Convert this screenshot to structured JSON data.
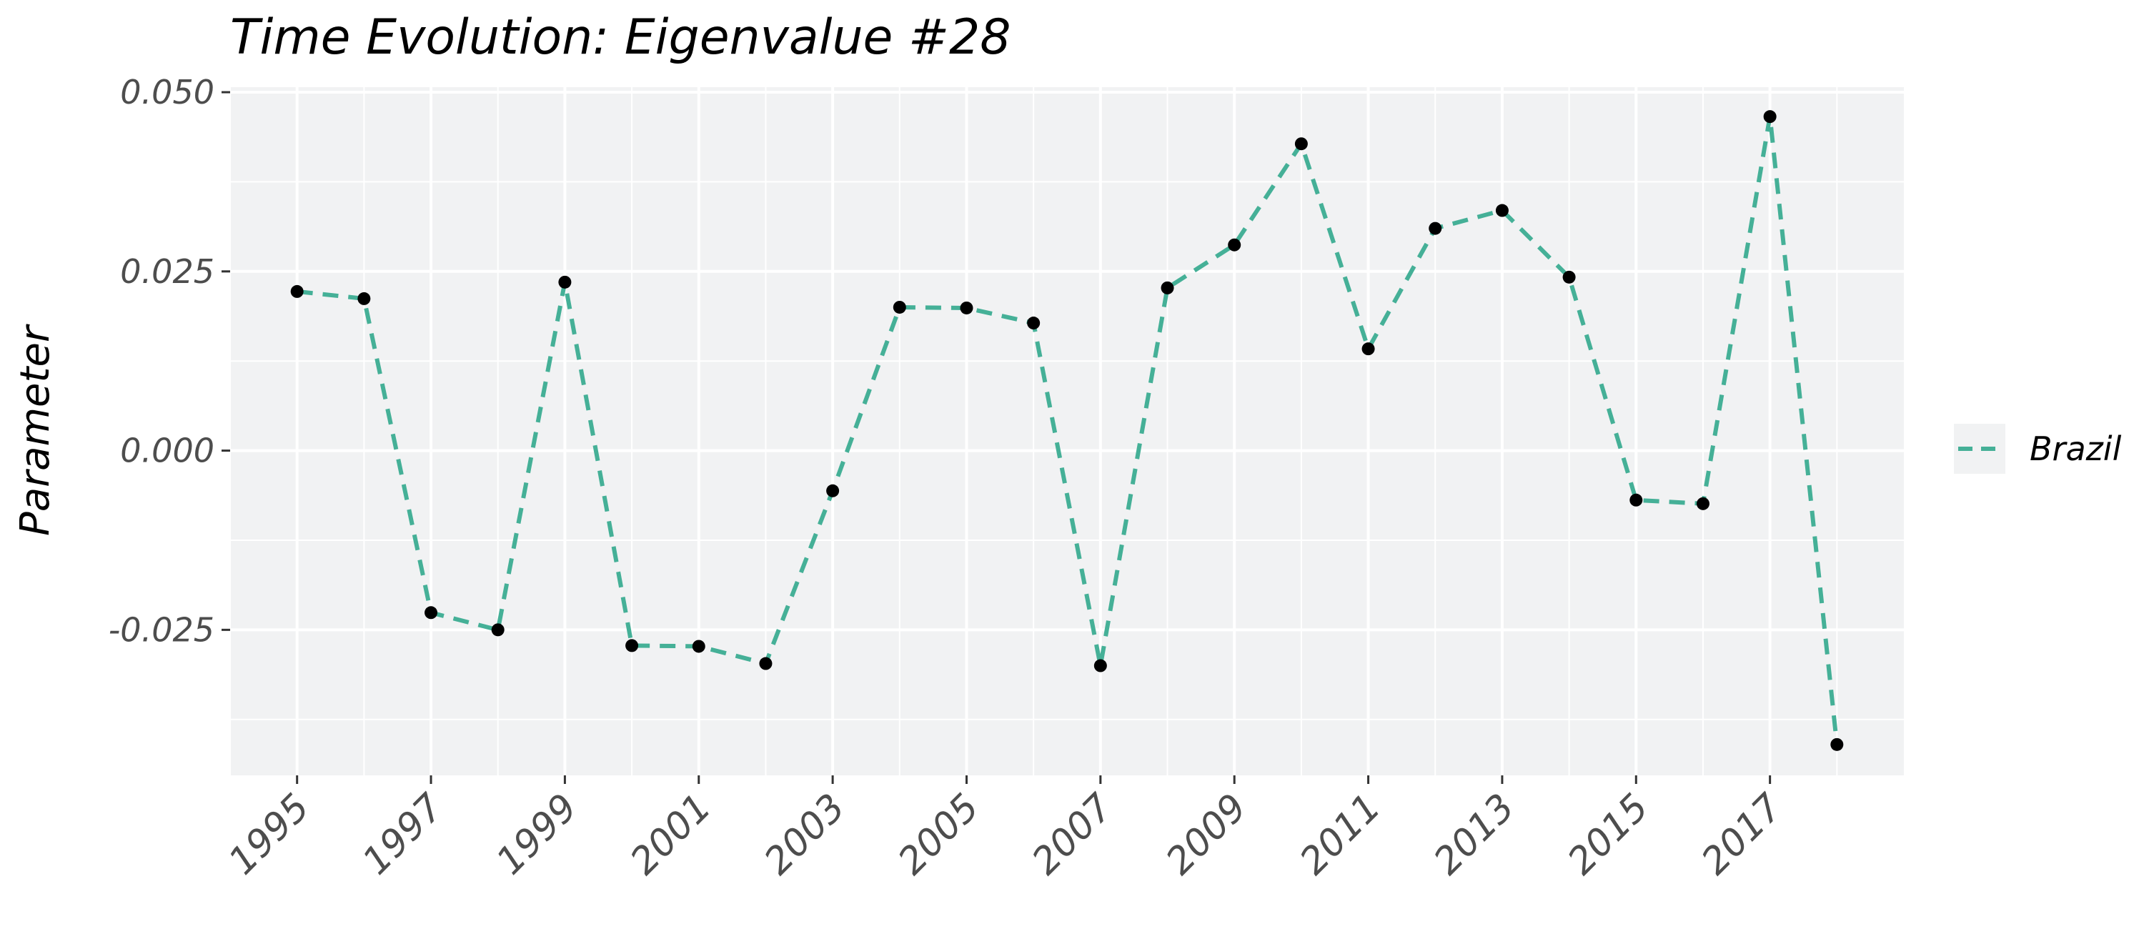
{
  "chart_data": {
    "type": "line",
    "title": "Time Evolution: Eigenvalue #28",
    "xlabel": "",
    "ylabel": "Parameter",
    "x": [
      1995,
      1996,
      1997,
      1998,
      1999,
      2000,
      2001,
      2002,
      2003,
      2004,
      2005,
      2006,
      2007,
      2008,
      2009,
      2010,
      2011,
      2012,
      2013,
      2014,
      2015,
      2016,
      2017,
      2018
    ],
    "series": [
      {
        "name": "Brazil",
        "color": "#45b097",
        "line_style": "dashed",
        "marker_color": "#000000",
        "values": [
          0.0222,
          0.0212,
          -0.0226,
          -0.025,
          0.0235,
          -0.0272,
          -0.0273,
          -0.0297,
          -0.0056,
          0.02,
          0.0199,
          0.0178,
          -0.03,
          0.0227,
          0.0287,
          0.0428,
          0.0142,
          0.031,
          0.0335,
          0.0242,
          -0.0069,
          -0.0074,
          0.0466,
          -0.041
        ]
      }
    ],
    "xticks": [
      "1995",
      "1997",
      "1999",
      "2001",
      "2003",
      "2005",
      "2007",
      "2009",
      "2011",
      "2013",
      "2015",
      "2017"
    ],
    "yticks": [
      "-0.025",
      "0.000",
      "0.025",
      "0.050"
    ],
    "xlim": [
      1994.0,
      2019.0
    ],
    "ylim": [
      -0.0453,
      0.0507
    ],
    "grid": true,
    "legend_position": "right",
    "panel_color": "#f1f2f3",
    "gridline_color": "#ffffff"
  }
}
